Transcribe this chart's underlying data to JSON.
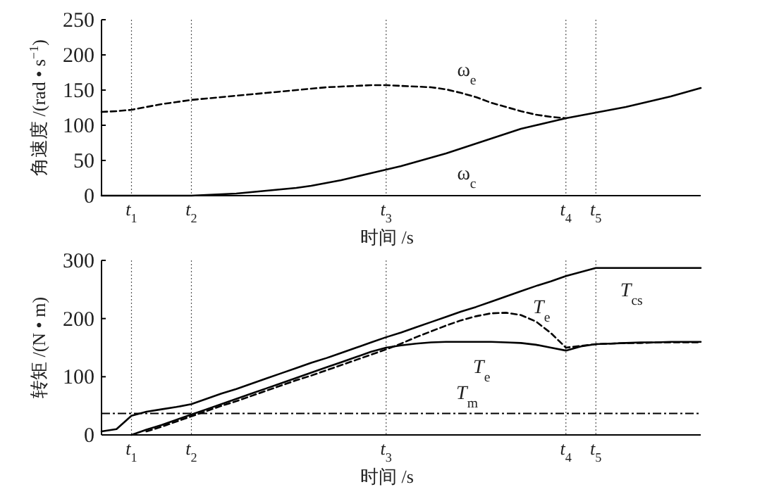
{
  "chart_data": [
    {
      "type": "line",
      "ylabel": "角速度 /(rad • s$^{−1}$)",
      "xlabel": "时间 /s",
      "ylim": [
        0,
        250
      ],
      "yticks": [
        0,
        50,
        100,
        150,
        200,
        250
      ],
      "categories": [
        null,
        null,
        "t$_{1}$",
        null,
        null,
        null,
        "t$_{2}$",
        null,
        null,
        null,
        null,
        null,
        null,
        null,
        null,
        null,
        null,
        null,
        null,
        "t$_{3}$",
        null,
        null,
        null,
        null,
        null,
        null,
        null,
        null,
        null,
        null,
        null,
        "t$_{4}$",
        null,
        "t$_{5}$",
        null,
        null,
        null,
        null,
        null,
        null,
        null
      ],
      "grid": "x",
      "series": [
        {
          "name": "ω$_{e}$",
          "color": "#000000",
          "line_style": "dashed",
          "values": [
            119,
            120,
            122,
            126,
            130,
            133,
            136,
            138,
            140,
            142,
            144,
            146,
            148,
            150,
            152,
            154,
            155,
            156,
            157,
            157,
            156,
            155,
            154,
            151,
            146,
            140,
            132,
            126,
            120,
            115,
            112,
            110,
            null,
            null,
            null,
            null,
            null,
            null,
            null,
            null,
            null
          ]
        },
        {
          "name": "ω$_{c}$",
          "color": "#000000",
          "line_style": "solid",
          "values": [
            0,
            0,
            0,
            0,
            0,
            0,
            0,
            1,
            2,
            3,
            5,
            7,
            9,
            11,
            14,
            18,
            22,
            27,
            32,
            37,
            42,
            48,
            54,
            60,
            67,
            74,
            81,
            88,
            95,
            100,
            105,
            110,
            114,
            118,
            122,
            126,
            131,
            136,
            141,
            147,
            153
          ]
        }
      ]
    },
    {
      "type": "line",
      "ylabel": "转矩 /(N • m)",
      "xlabel": "时间 /s",
      "ylim": [
        0,
        300
      ],
      "yticks": [
        0,
        100,
        200,
        300
      ],
      "categories": [
        null,
        null,
        "t$_{1}$",
        null,
        null,
        null,
        "t$_{2}$",
        null,
        null,
        null,
        null,
        null,
        null,
        null,
        null,
        null,
        null,
        null,
        null,
        "t$_{3}$",
        null,
        null,
        null,
        null,
        null,
        null,
        null,
        null,
        null,
        null,
        null,
        "t$_{4}$",
        null,
        "t$_{5}$",
        null,
        null,
        null,
        null,
        null,
        null,
        null
      ],
      "grid": "x",
      "series": [
        {
          "name": "T$_{cs}$",
          "color": "#000000",
          "line_style": "solid",
          "values": [
            6,
            10,
            33,
            40,
            44,
            48,
            53,
            62,
            71,
            79,
            88,
            97,
            106,
            115,
            124,
            132,
            141,
            150,
            159,
            168,
            176,
            185,
            194,
            203,
            212,
            220,
            229,
            238,
            247,
            256,
            264,
            273,
            280,
            287,
            287,
            287,
            287,
            287,
            287,
            287,
            287
          ]
        },
        {
          "name": "T$_{e}$",
          "color": "#000000",
          "line_style": "solid",
          "values": [
            null,
            null,
            0,
            9,
            17,
            26,
            35,
            44,
            53,
            62,
            71,
            80,
            89,
            98,
            107,
            116,
            125,
            134,
            143,
            150,
            154,
            157,
            159,
            160,
            160,
            160,
            160,
            159,
            158,
            155,
            150,
            145,
            152,
            156,
            157,
            158,
            159,
            159,
            160,
            160,
            160
          ]
        },
        {
          "name": "T$_{e}$",
          "color": "#000000",
          "line_style": "dashed",
          "values": [
            null,
            null,
            null,
            6,
            14,
            23,
            32,
            41,
            50,
            58,
            67,
            76,
            85,
            94,
            102,
            111,
            120,
            129,
            138,
            147,
            157,
            168,
            178,
            188,
            197,
            204,
            209,
            210,
            206,
            195,
            175,
            150,
            153,
            156,
            157,
            158,
            158,
            159,
            159,
            159,
            159
          ]
        }
      ],
      "ref_lines": [
        {
          "axis": "y",
          "value": 37,
          "label": "T$_{m}$",
          "line_style": "dashdot"
        }
      ]
    }
  ]
}
